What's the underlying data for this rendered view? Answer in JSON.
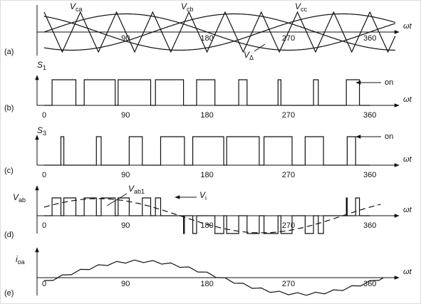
{
  "axis_label": "ωt",
  "panels": [
    {
      "tag": "(a)",
      "ticks": [
        90,
        180,
        270,
        360
      ],
      "labels": [
        {
          "main": "V",
          "sub": "ca"
        },
        {
          "main": "V",
          "sub": "cb"
        },
        {
          "main": "V",
          "sub": "cc"
        },
        {
          "main": "V",
          "sub": "Δ"
        }
      ]
    },
    {
      "tag": "(b)",
      "ticks": [
        0,
        90,
        180,
        270,
        360
      ],
      "y_label": {
        "main": "S",
        "sub": "1"
      },
      "note": "on"
    },
    {
      "tag": "(c)",
      "ticks": [
        0,
        90,
        180,
        270,
        360
      ],
      "y_label": {
        "main": "S",
        "sub": "3"
      },
      "note": "on"
    },
    {
      "tag": "(d)",
      "ticks": [
        0,
        90,
        180,
        270,
        360
      ],
      "y_label": {
        "main": "V",
        "sub": "ab"
      },
      "labels": [
        {
          "main": "V",
          "sub": "ab1"
        },
        {
          "main": "V",
          "sub": "i"
        }
      ]
    },
    {
      "tag": "(e)",
      "ticks": [
        0,
        90,
        180,
        270,
        360
      ],
      "y_label": {
        "main": "i",
        "sub": "oa"
      }
    }
  ]
}
